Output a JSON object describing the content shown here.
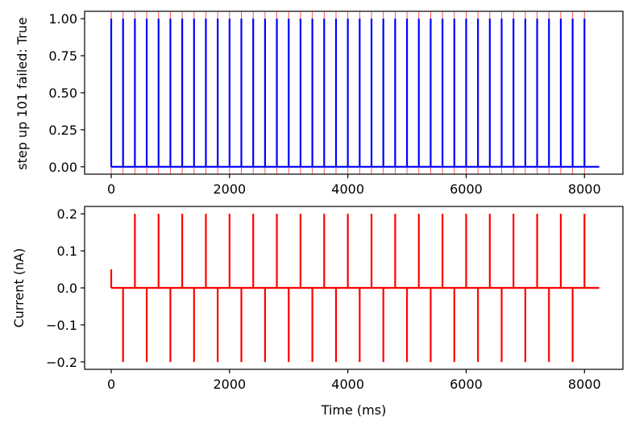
{
  "chart_data": [
    {
      "type": "line",
      "ylabel": "step up 101 failed: True",
      "xlabel": "",
      "xlim": [
        -450,
        8650
      ],
      "ylim": [
        -0.05,
        1.05
      ],
      "xticks": [
        "0",
        "2000",
        "4000",
        "6000",
        "8000"
      ],
      "yticks": [
        "0.00",
        "0.25",
        "0.50",
        "0.75",
        "1.00"
      ],
      "grid": false,
      "spike_times": [
        0,
        200,
        400,
        600,
        800,
        1000,
        1200,
        1400,
        1600,
        1800,
        2000,
        2200,
        2400,
        2600,
        2800,
        3000,
        3200,
        3400,
        3600,
        3800,
        4000,
        4200,
        4400,
        4600,
        4800,
        5000,
        5200,
        5400,
        5600,
        5800,
        6000,
        6200,
        6400,
        6600,
        6800,
        7000,
        7200,
        7400,
        7600,
        7800,
        8000
      ],
      "series": [
        {
          "color": "#0000ff",
          "x_end": 8250,
          "spike_height": 1.0,
          "baseline": 0.0
        },
        {
          "color": "#ff0000",
          "style": "vertical markers at stimulus times"
        }
      ],
      "stimulus_times": [
        0,
        200,
        400,
        600,
        800,
        1000,
        1200,
        1400,
        1600,
        1800,
        2000,
        2200,
        2400,
        2600,
        2800,
        3000,
        3200,
        3400,
        3600,
        3800,
        4000,
        4200,
        4400,
        4600,
        4800,
        5000,
        5200,
        5400,
        5600,
        5800,
        6000,
        6200,
        6400,
        6600,
        6800,
        7000,
        7200,
        7400,
        7600,
        7800,
        8000
      ]
    },
    {
      "type": "line",
      "ylabel": "Current (nA)",
      "xlabel": "Time (ms)",
      "xlim": [
        -450,
        8650
      ],
      "ylim": [
        -0.22,
        0.22
      ],
      "xticks": [
        "0",
        "2000",
        "4000",
        "6000",
        "8000"
      ],
      "yticks": [
        "−0.2",
        "−0.1",
        "0.0",
        "0.1",
        "0.2"
      ],
      "grid": false,
      "series": [
        {
          "color": "#ff0000",
          "x_end": 8250,
          "initial_pulse": {
            "x": 0,
            "y": 0.05
          },
          "positive_pulses": {
            "x": [
              400,
              800,
              1200,
              1600,
              2000,
              2400,
              2800,
              3200,
              3600,
              4000,
              4400,
              4800,
              5200,
              5600,
              6000,
              6400,
              6800,
              7200,
              7600,
              8000
            ],
            "y": 0.2
          },
          "negative_pulses": {
            "x": [
              200,
              600,
              1000,
              1400,
              1800,
              2200,
              2600,
              3000,
              3400,
              3800,
              4200,
              4600,
              5000,
              5400,
              5800,
              6200,
              6600,
              7000,
              7400,
              7800
            ],
            "y": -0.2
          }
        }
      ]
    }
  ]
}
